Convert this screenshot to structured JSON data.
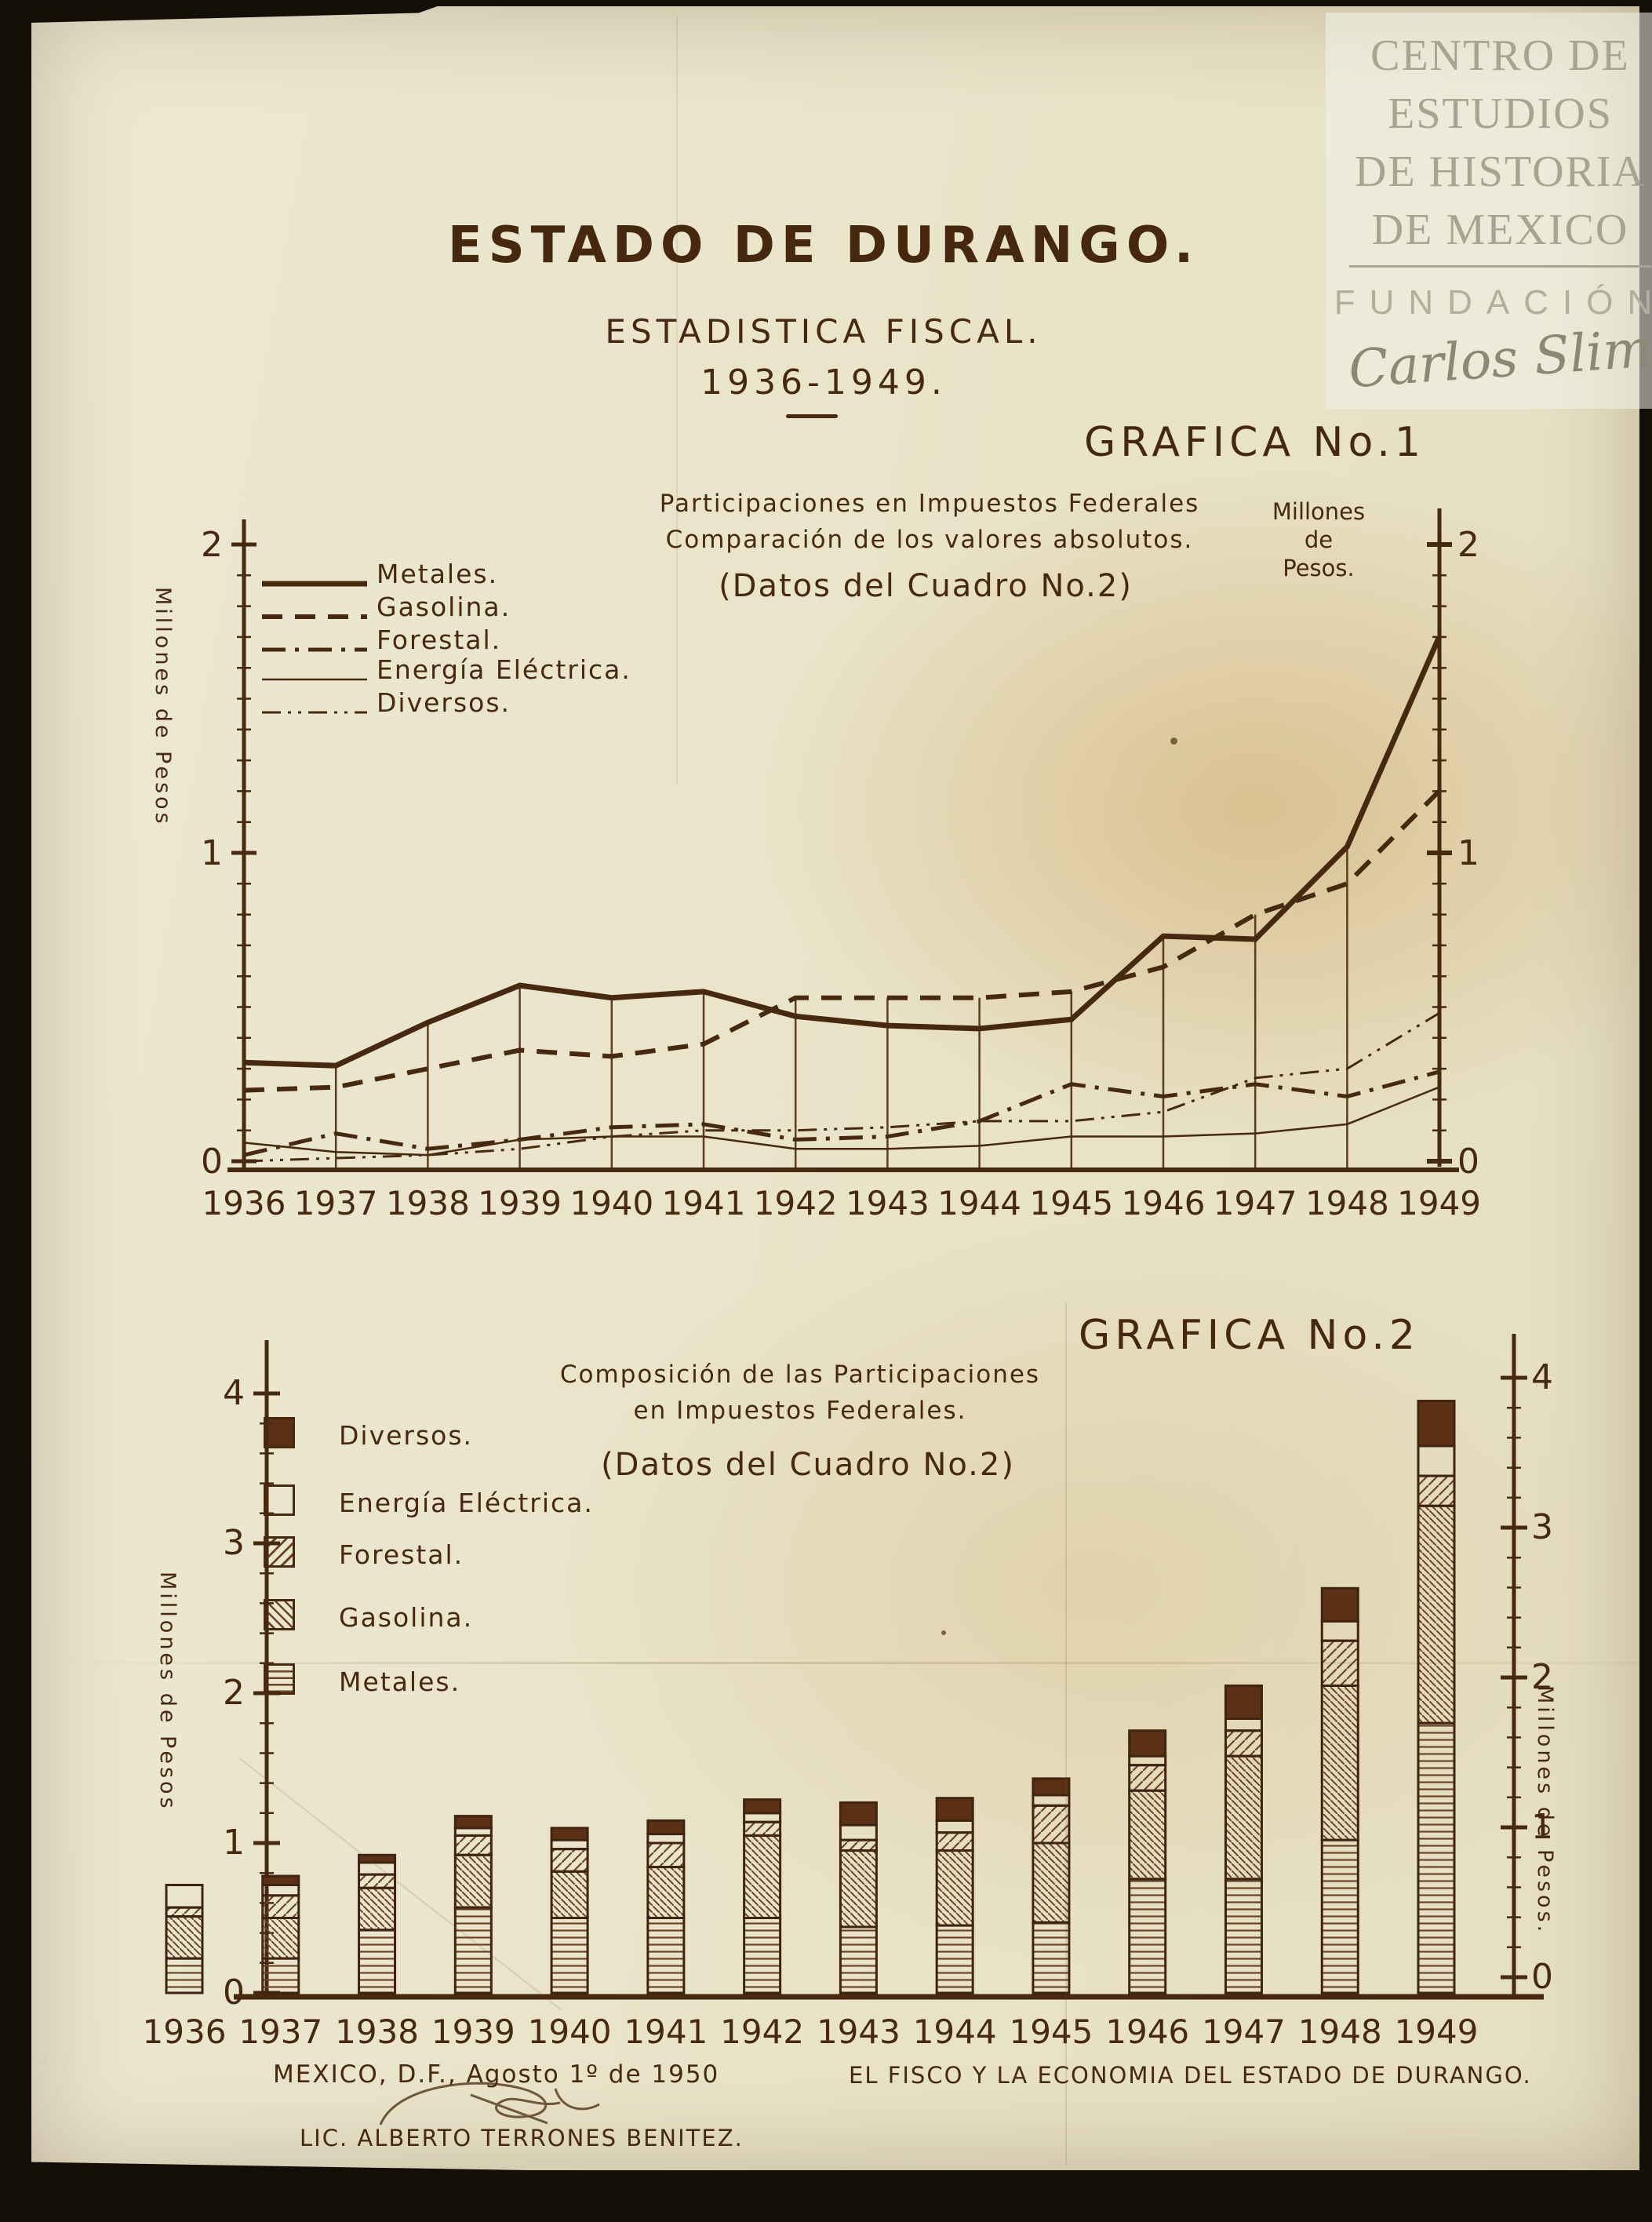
{
  "photo": {
    "archive_lines": [
      "CENTRO DE",
      "ESTUDIOS",
      "DE HISTORIA",
      "DE MEXICO"
    ],
    "foundation": "FUNDACIÓN",
    "signature": "Carlos Slim"
  },
  "header": {
    "title": "ESTADO DE DURANGO.",
    "subtitle": "ESTADISTICA FISCAL.",
    "period": "1936-1949."
  },
  "chart1": {
    "heading": "GRAFICA No.1",
    "title_line1": "Participaciones en Impuestos Federales",
    "title_line2": "Comparación de los valores absolutos.",
    "source_note": "(Datos del Cuadro No.2)",
    "left_axis_label": "Millones de Pesos",
    "right_axis_label_lines": [
      "Millones",
      "de",
      "Pesos."
    ],
    "legend": [
      {
        "label": "Metales.",
        "line_style": "solid-thick"
      },
      {
        "label": "Gasolina.",
        "line_style": "dashed"
      },
      {
        "label": "Forestal.",
        "line_style": "dash-dot"
      },
      {
        "label": "Energía Eléctrica.",
        "line_style": "solid-thin"
      },
      {
        "label": "Diversos.",
        "line_style": "dash-dot-dot"
      }
    ]
  },
  "chart2": {
    "heading": "GRAFICA No.2",
    "title_line1": "Composición de las Participaciones",
    "title_line2": "en Impuestos Federales.",
    "source_note": "(Datos del Cuadro No.2)",
    "left_axis_label": "Millones de Pesos",
    "right_axis_label": "Millones de Pesos.",
    "legend": [
      {
        "label": "Diversos.",
        "pattern": "solid"
      },
      {
        "label": "Energía Eléctrica.",
        "pattern": "empty"
      },
      {
        "label": "Forestal.",
        "pattern": "diag-up"
      },
      {
        "label": "Gasolina.",
        "pattern": "diag-down"
      },
      {
        "label": "Metales.",
        "pattern": "horizontal"
      }
    ]
  },
  "footer": {
    "place_date": "MEXICO, D.F., Agosto 1º de 1950",
    "author": "LIC. ALBERTO TERRONES BENITEZ.",
    "caption": "EL FISCO Y LA ECONOMIA DEL ESTADO DE DURANGO."
  },
  "chart_data": [
    {
      "type": "line",
      "title": "Participaciones en Impuestos Federales — Comparación de los valores absolutos",
      "source": "(Datos del Cuadro No.2)",
      "ylabel": "Millones de Pesos",
      "ylim": [
        0,
        2
      ],
      "grid": "vertical drop lines at each year up to the highest curve",
      "legend_position": "top-left",
      "x": [
        1936,
        1937,
        1938,
        1939,
        1940,
        1941,
        1942,
        1943,
        1944,
        1945,
        1946,
        1947,
        1948,
        1949
      ],
      "series": [
        {
          "name": "Metales",
          "line_style": "solid-thick",
          "values": [
            0.32,
            0.31,
            0.45,
            0.57,
            0.53,
            0.55,
            0.47,
            0.44,
            0.43,
            0.46,
            0.73,
            0.72,
            1.02,
            1.7
          ]
        },
        {
          "name": "Gasolina",
          "line_style": "dashed",
          "values": [
            0.23,
            0.24,
            0.3,
            0.36,
            0.34,
            0.38,
            0.53,
            0.53,
            0.53,
            0.55,
            0.63,
            0.8,
            0.9,
            1.2
          ]
        },
        {
          "name": "Forestal",
          "line_style": "dash-dot",
          "values": [
            0.02,
            0.09,
            0.04,
            0.07,
            0.11,
            0.12,
            0.07,
            0.08,
            0.13,
            0.25,
            0.21,
            0.25,
            0.21,
            0.29
          ]
        },
        {
          "name": "Energía Eléctrica",
          "line_style": "solid-thin",
          "values": [
            0.06,
            0.03,
            0.02,
            0.07,
            0.08,
            0.08,
            0.04,
            0.04,
            0.05,
            0.08,
            0.08,
            0.09,
            0.12,
            0.24
          ]
        },
        {
          "name": "Diversos",
          "line_style": "dash-dot-dot",
          "values": [
            0.0,
            0.01,
            0.02,
            0.04,
            0.08,
            0.1,
            0.1,
            0.11,
            0.13,
            0.13,
            0.16,
            0.27,
            0.3,
            0.48
          ]
        }
      ]
    },
    {
      "type": "bar",
      "stacked": true,
      "title": "Composición de las Participaciones en Impuestos Federales",
      "source": "(Datos del Cuadro No.2)",
      "ylabel": "Millones de Pesos",
      "ylim": [
        0,
        4
      ],
      "categories": [
        1936,
        1937,
        1938,
        1939,
        1940,
        1941,
        1942,
        1943,
        1944,
        1945,
        1946,
        1947,
        1948,
        1949
      ],
      "series": [
        {
          "name": "Metales",
          "pattern": "horizontal",
          "values": [
            0.23,
            0.23,
            0.42,
            0.57,
            0.5,
            0.5,
            0.5,
            0.44,
            0.45,
            0.47,
            0.76,
            0.76,
            1.02,
            1.8
          ]
        },
        {
          "name": "Gasolina",
          "pattern": "diag-down",
          "values": [
            0.28,
            0.27,
            0.28,
            0.35,
            0.31,
            0.34,
            0.55,
            0.51,
            0.5,
            0.53,
            0.59,
            0.82,
            1.03,
            1.45
          ]
        },
        {
          "name": "Forestal",
          "pattern": "diag-up",
          "values": [
            0.06,
            0.15,
            0.09,
            0.13,
            0.15,
            0.16,
            0.09,
            0.07,
            0.12,
            0.25,
            0.17,
            0.17,
            0.3,
            0.2
          ]
        },
        {
          "name": "Energía Eléctrica",
          "pattern": "empty",
          "values": [
            0.15,
            0.07,
            0.08,
            0.05,
            0.06,
            0.06,
            0.06,
            0.1,
            0.08,
            0.07,
            0.06,
            0.08,
            0.13,
            0.2
          ]
        },
        {
          "name": "Diversos",
          "pattern": "solid",
          "values": [
            0.0,
            0.06,
            0.05,
            0.08,
            0.08,
            0.09,
            0.09,
            0.15,
            0.15,
            0.11,
            0.17,
            0.22,
            0.22,
            0.3
          ]
        }
      ],
      "totals": [
        0.72,
        0.78,
        0.92,
        1.18,
        1.1,
        1.15,
        1.29,
        1.27,
        1.3,
        1.43,
        1.75,
        2.05,
        2.7,
        3.95
      ]
    }
  ]
}
